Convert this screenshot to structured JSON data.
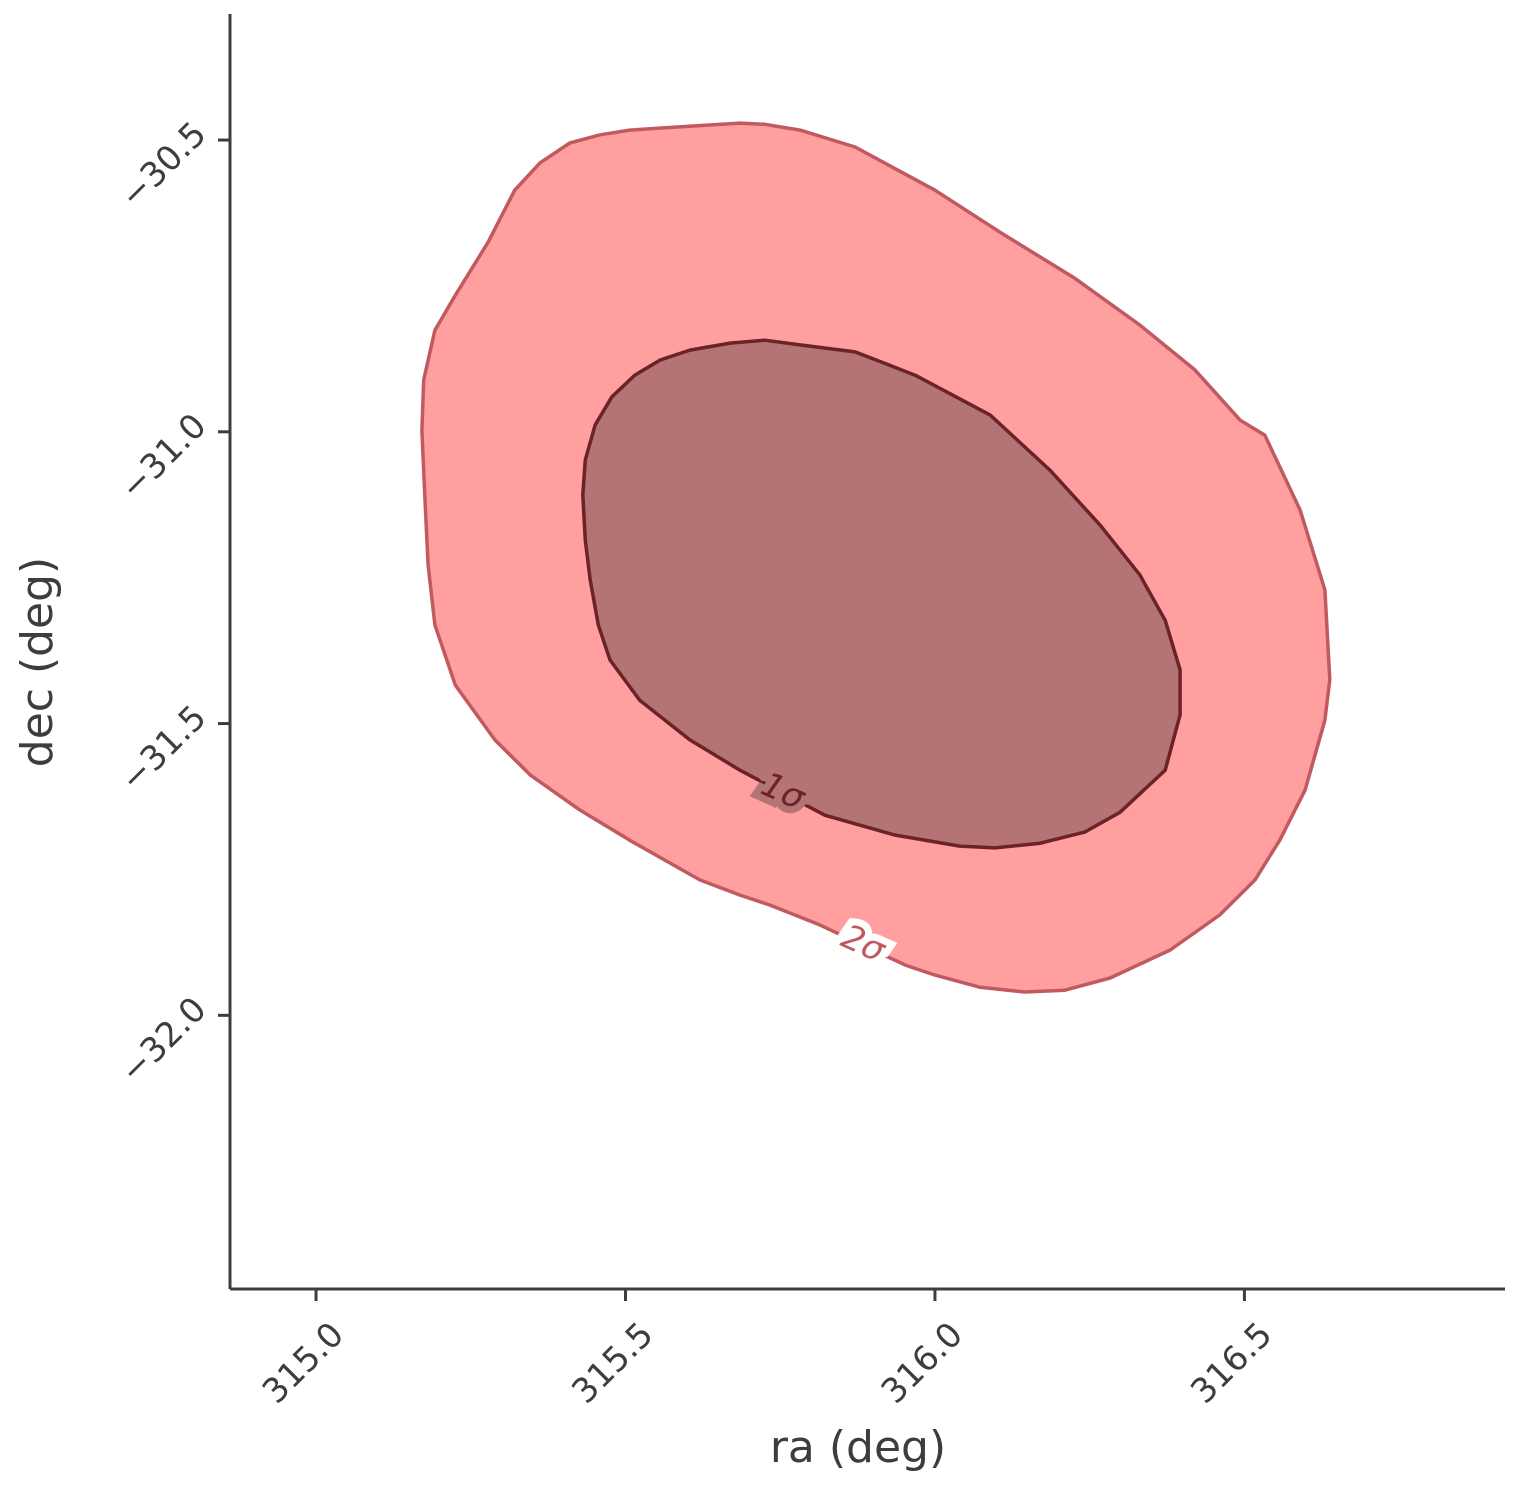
{
  "chart_data": {
    "type": "contour",
    "x_label": "ra (deg)",
    "y_label": "dec (deg)",
    "xlim": [
      314.861,
      316.921
    ],
    "ylim": [
      -32.469,
      -30.284
    ],
    "xticks": [
      {
        "value": 315.0,
        "label": "315.0"
      },
      {
        "value": 315.5,
        "label": "315.5"
      },
      {
        "value": 316.0,
        "label": "316.0"
      },
      {
        "value": 316.5,
        "label": "316.5"
      }
    ],
    "yticks": [
      {
        "value": -30.5,
        "label": "−30.5"
      },
      {
        "value": -31.0,
        "label": "−31.0"
      },
      {
        "value": -31.5,
        "label": "−31.5"
      },
      {
        "value": -32.0,
        "label": "−32.0"
      }
    ],
    "series": [
      {
        "name": "2σ",
        "color": "#ff9fa0",
        "edgecolor": "#c05a60",
        "x": [
          315.507,
          315.564,
          315.685,
          315.725,
          315.782,
          315.871,
          316.0,
          316.105,
          316.226,
          316.331,
          316.42,
          316.493,
          316.533,
          316.59,
          316.63,
          316.638,
          316.63,
          316.598,
          316.557,
          316.517,
          316.46,
          316.38,
          316.283,
          316.21,
          316.145,
          316.073,
          316.0,
          315.952,
          315.814,
          315.733,
          315.685,
          315.62,
          315.507,
          315.426,
          315.346,
          315.289,
          315.225,
          315.192,
          315.181,
          315.176,
          315.171,
          315.174,
          315.192,
          315.225,
          315.278,
          315.321,
          315.362,
          315.41,
          315.459
        ],
        "y": [
          -30.483,
          -30.479,
          -30.471,
          -30.473,
          -30.483,
          -30.512,
          -30.586,
          -30.658,
          -30.737,
          -30.817,
          -30.894,
          -30.98,
          -31.006,
          -31.134,
          -31.271,
          -31.425,
          -31.494,
          -31.614,
          -31.7,
          -31.768,
          -31.828,
          -31.888,
          -31.936,
          -31.957,
          -31.96,
          -31.952,
          -31.931,
          -31.914,
          -31.845,
          -31.811,
          -31.794,
          -31.768,
          -31.7,
          -31.648,
          -31.588,
          -31.528,
          -31.434,
          -31.331,
          -31.228,
          -31.117,
          -30.997,
          -30.911,
          -30.826,
          -30.766,
          -30.675,
          -30.586,
          -30.539,
          -30.505,
          -30.491
        ]
      },
      {
        "name": "1σ",
        "color": "#b57474",
        "edgecolor": "#6b2228",
        "x": [
          315.725,
          315.782,
          315.871,
          315.968,
          316.089,
          316.186,
          316.267,
          316.331,
          316.372,
          316.396,
          316.396,
          316.372,
          316.299,
          316.242,
          316.17,
          316.097,
          316.04,
          315.935,
          315.822,
          315.685,
          315.604,
          315.523,
          315.475,
          315.456,
          315.443,
          315.435,
          315.431,
          315.435,
          315.451,
          315.478,
          315.515,
          315.556,
          315.604,
          315.669
        ],
        "y": [
          -30.843,
          -30.851,
          -30.863,
          -30.903,
          -30.971,
          -31.066,
          -31.16,
          -31.245,
          -31.323,
          -31.408,
          -31.485,
          -31.58,
          -31.652,
          -31.686,
          -31.705,
          -31.713,
          -31.71,
          -31.691,
          -31.657,
          -31.58,
          -31.528,
          -31.46,
          -31.391,
          -31.331,
          -31.254,
          -31.186,
          -31.108,
          -31.048,
          -30.988,
          -30.94,
          -30.903,
          -30.877,
          -30.86,
          -30.848
        ]
      }
    ]
  }
}
